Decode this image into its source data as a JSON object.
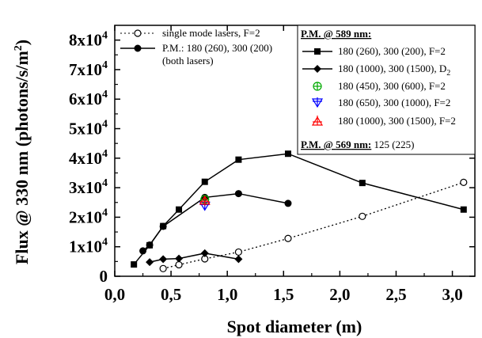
{
  "chart_data": {
    "type": "line",
    "xlabel": "Spot diameter (m)",
    "ylabel": "Flux @ 330 nm (photons/s/m",
    "ylabel_superscript": "2",
    "ylabel_close": ")",
    "xlim": [
      0.0,
      3.2
    ],
    "ylim": [
      0,
      85000
    ],
    "x_ticks": [
      {
        "value": 0.0,
        "label": "0,0"
      },
      {
        "value": 0.5,
        "label": "0,5"
      },
      {
        "value": 1.0,
        "label": "1,0"
      },
      {
        "value": 1.5,
        "label": "1,5"
      },
      {
        "value": 2.0,
        "label": "2,0"
      },
      {
        "value": 2.5,
        "label": "2,5"
      },
      {
        "value": 3.0,
        "label": "3,0"
      }
    ],
    "y_ticks": [
      {
        "value": 0,
        "mantissa": "0",
        "exponent": ""
      },
      {
        "value": 10000,
        "mantissa": "1x10",
        "exponent": "4"
      },
      {
        "value": 20000,
        "mantissa": "2x10",
        "exponent": "4"
      },
      {
        "value": 30000,
        "mantissa": "3x10",
        "exponent": "4"
      },
      {
        "value": 40000,
        "mantissa": "4x10",
        "exponent": "4"
      },
      {
        "value": 50000,
        "mantissa": "5x10",
        "exponent": "4"
      },
      {
        "value": 60000,
        "mantissa": "6x10",
        "exponent": "4"
      },
      {
        "value": 70000,
        "mantissa": "7x10",
        "exponent": "4"
      },
      {
        "value": 80000,
        "mantissa": "8x10",
        "exponent": "4"
      }
    ],
    "series": [
      {
        "name": "single mode lasers, F=2",
        "marker": "open-circle",
        "line": "dotted",
        "color": "#000000",
        "x": [
          0.43,
          0.57,
          0.8,
          1.1,
          1.54,
          2.2,
          3.1
        ],
        "y": [
          2600,
          3900,
          5900,
          8200,
          12800,
          20300,
          31800
        ]
      },
      {
        "name": "P.M.: 180 (260), 300 (200)",
        "name_line2": "(both lasers)",
        "marker": "filled-circle",
        "line": "solid",
        "color": "#000000",
        "x": [
          0.25,
          0.31,
          0.43,
          0.8,
          1.1,
          1.54
        ],
        "y": [
          8600,
          10600,
          16900,
          26700,
          28000,
          24700
        ]
      },
      {
        "name": "180 (260), 300 (200), F=2",
        "marker": "filled-square",
        "line": "solid",
        "color": "#000000",
        "x": [
          0.17,
          0.31,
          0.43,
          0.57,
          0.8,
          1.1,
          1.54,
          2.2,
          3.1
        ],
        "y": [
          4000,
          10500,
          17000,
          22600,
          32000,
          39500,
          41500,
          31600,
          22600
        ]
      },
      {
        "name": "180 (1000), 300 (1500), D",
        "name_sub": "2",
        "marker": "filled-diamond",
        "line": "solid",
        "color": "#000000",
        "x": [
          0.31,
          0.43,
          0.57,
          0.8,
          1.1
        ],
        "y": [
          4800,
          5800,
          6000,
          7800,
          5800
        ]
      },
      {
        "name": "180 (450), 300 (600), F=2",
        "marker": "circle-plus",
        "line": "none",
        "color": "#00aa00",
        "x": [
          0.8
        ],
        "y": [
          26000
        ]
      },
      {
        "name": "180 (650), 300 (1000), F=2",
        "marker": "triangle-down-plus",
        "line": "none",
        "color": "#0000ff",
        "x": [
          0.8
        ],
        "y": [
          24000
        ]
      },
      {
        "name": "180 (1000), 300 (1500), F=2",
        "marker": "triangle-up-plus",
        "line": "none",
        "color": "#ff0000",
        "x": [
          0.8
        ],
        "y": [
          25500
        ]
      }
    ],
    "legend_right": {
      "header1_prefix": "P.M. @ ",
      "header1_value": "589",
      "header1_suffix": " nm:",
      "footer_prefix": "P.M. @ ",
      "footer_value": "569",
      "footer_mid": " nm:",
      "footer_rest": " 125 (225)"
    }
  }
}
